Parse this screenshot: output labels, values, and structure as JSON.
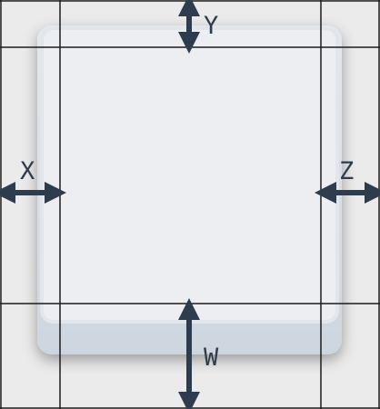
{
  "figure": {
    "labels": {
      "top": "Y",
      "left": "X",
      "right": "Z",
      "bottom": "W"
    },
    "colors": {
      "background": "#ebebeb",
      "keycap_base": "#d3dbe3",
      "keycap_face": "#eceef2",
      "grid_line": "#1c1c1c",
      "arrow": "#2e3c4d"
    }
  }
}
